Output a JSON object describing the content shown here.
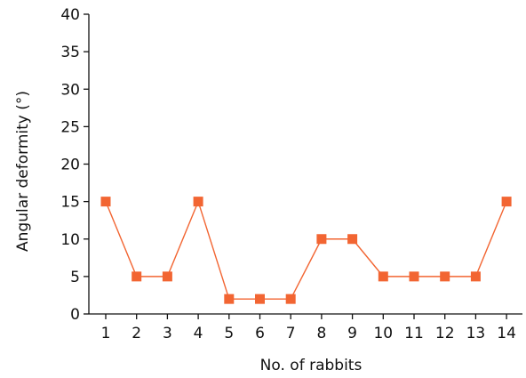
{
  "chart_data": {
    "type": "line",
    "title": "",
    "xlabel": "No. of rabbits",
    "ylabel": "Angular deformity (°)",
    "x": [
      1,
      2,
      3,
      4,
      5,
      6,
      7,
      8,
      9,
      10,
      11,
      12,
      13,
      14
    ],
    "series": [
      {
        "values": [
          15,
          5,
          5,
          15,
          2,
          2,
          2,
          10,
          10,
          5,
          5,
          5,
          5,
          15
        ]
      }
    ],
    "ylim": [
      0,
      40
    ],
    "yticks": [
      0,
      5,
      10,
      15,
      20,
      25,
      30,
      35,
      40
    ],
    "grid": false,
    "legend": "none",
    "marker": "square",
    "colors": {
      "series": "#f26532",
      "axis": "#111111"
    }
  }
}
